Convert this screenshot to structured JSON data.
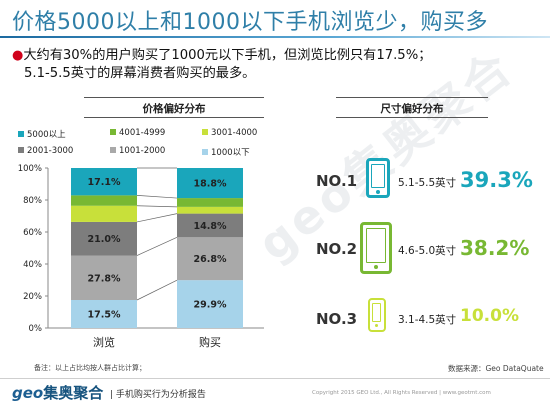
{
  "title": "价格5000以上和1000以下手机浏览少，购买多",
  "bullet": {
    "line1": "大约有30%的用户购买了1000元以下手机，但浏览比例只有17.5%；",
    "line2": "5.1-5.5英寸的屏幕消费者购买的最多。"
  },
  "watermark": "geo集奥聚合",
  "colors": {
    "title": "#2f7fa8",
    "teal": "#1aa6bb",
    "green": "#78b833",
    "lime": "#c8e03a",
    "dark_gray": "#7d7d7d",
    "light_gray": "#a9a9a9",
    "light_blue": "#a6d3ea"
  },
  "chart_data": [
    {
      "type": "bar",
      "stacked": true,
      "title": "价格偏好分布",
      "categories": [
        "浏览",
        "购买"
      ],
      "ylim": [
        0,
        100
      ],
      "yticks": [
        "0%",
        "20%",
        "40%",
        "60%",
        "80%",
        "100%"
      ],
      "legend_position": "top",
      "series": [
        {
          "name": "1000以下",
          "color": "#a6d3ea",
          "values": [
            17.5,
            29.9
          ],
          "labels": [
            "17.5%",
            "29.9%"
          ]
        },
        {
          "name": "1001-2000",
          "color": "#a9a9a9",
          "values": [
            27.8,
            26.8
          ],
          "labels": [
            "27.8%",
            "26.8%"
          ]
        },
        {
          "name": "2001-3000",
          "color": "#7d7d7d",
          "values": [
            21.0,
            14.8
          ],
          "labels": [
            "21.0%",
            "14.8%"
          ]
        },
        {
          "name": "3001-4000",
          "color": "#c8e03a",
          "values": [
            10.1,
            4.2
          ],
          "labels": [
            "",
            ""
          ]
        },
        {
          "name": "4001-4999",
          "color": "#78b833",
          "values": [
            6.5,
            5.5
          ],
          "labels": [
            "",
            ""
          ]
        },
        {
          "name": "5000以上",
          "color": "#1aa6bb",
          "values": [
            17.1,
            18.8
          ],
          "labels": [
            "17.1%",
            "18.8%"
          ]
        }
      ],
      "legend_order": [
        "5000以上",
        "4001-4999",
        "3001-4000",
        "2001-3000",
        "1001-2000",
        "1000以下"
      ]
    },
    {
      "type": "table",
      "title": "尺寸偏好分布",
      "rows": [
        {
          "rank": "NO.1",
          "size": "5.1-5.5英寸",
          "value": 39.3,
          "label": "39.3%",
          "color": "#1aa6bb"
        },
        {
          "rank": "NO.2",
          "size": "4.6-5.0英寸",
          "value": 38.2,
          "label": "38.2%",
          "color": "#78b833"
        },
        {
          "rank": "NO.3",
          "size": "3.1-4.5英寸",
          "value": 10.0,
          "label": "10.0%",
          "color": "#c8e03a"
        }
      ]
    }
  ],
  "note": "备注：以上占比均按人群占比计算；",
  "source": "数据来源：Geo DataQuate",
  "footer": {
    "logo_geo": "geo",
    "logo_cn": "集奥聚合",
    "report": "| 手机购买行为分析报告",
    "copyright": "Copyright 2015 GEO Ltd., All Rights Reserved  |  www.geotmt.com"
  }
}
